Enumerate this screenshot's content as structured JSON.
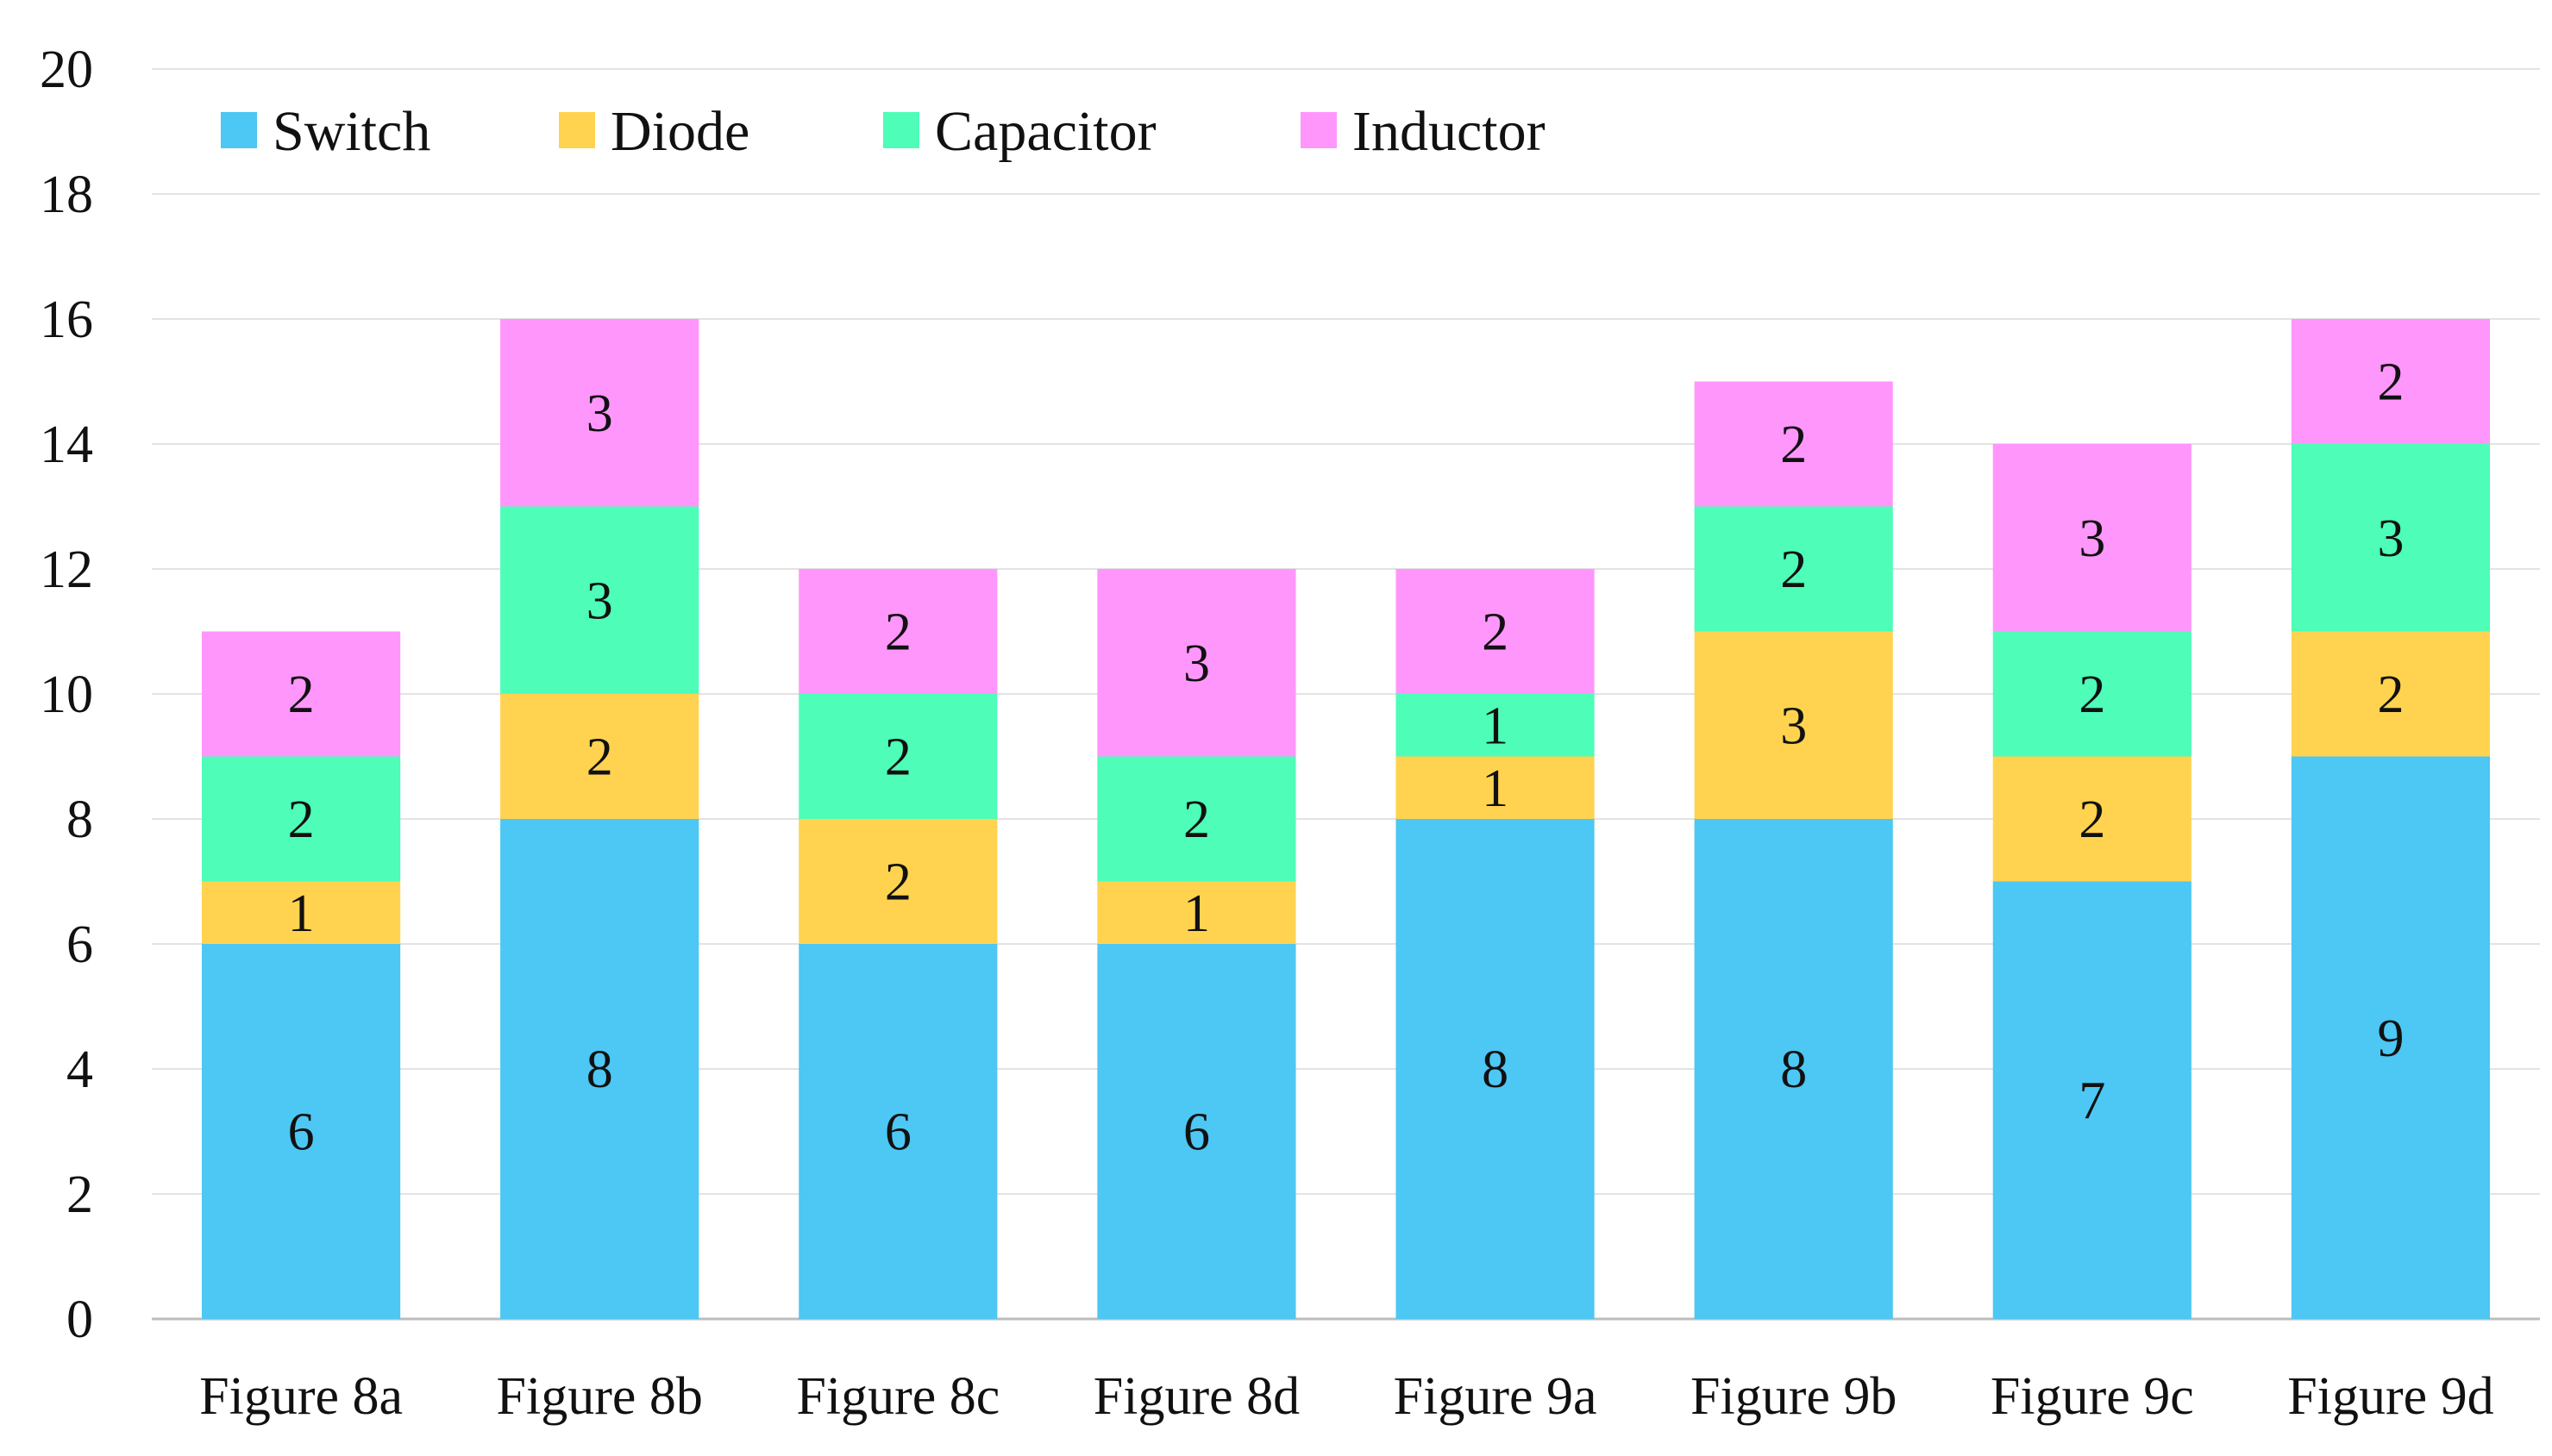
{
  "chart_data": {
    "type": "bar",
    "stacked": true,
    "title": "",
    "xlabel": "",
    "ylabel": "",
    "ylim": [
      0,
      20
    ],
    "yticks": [
      0,
      2,
      4,
      6,
      8,
      10,
      12,
      14,
      16,
      18,
      20
    ],
    "grid": true,
    "legend_position": "top-left",
    "categories": [
      "Figure 8a",
      "Figure 8b",
      "Figure 8c",
      "Figure 8d",
      "Figure 9a",
      "Figure 9b",
      "Figure 9c",
      "Figure 9d"
    ],
    "series": [
      {
        "name": "Switch",
        "color": "#4DC7F3",
        "values": [
          6,
          8,
          6,
          6,
          8,
          8,
          7,
          9
        ]
      },
      {
        "name": "Diode",
        "color": "#FFD34F",
        "values": [
          1,
          2,
          2,
          1,
          1,
          3,
          2,
          2
        ]
      },
      {
        "name": "Capacitor",
        "color": "#4DFDB8",
        "values": [
          2,
          3,
          2,
          2,
          1,
          2,
          2,
          3
        ]
      },
      {
        "name": "Inductor",
        "color": "#FF96FC",
        "values": [
          2,
          3,
          2,
          3,
          2,
          2,
          3,
          2
        ]
      }
    ]
  }
}
